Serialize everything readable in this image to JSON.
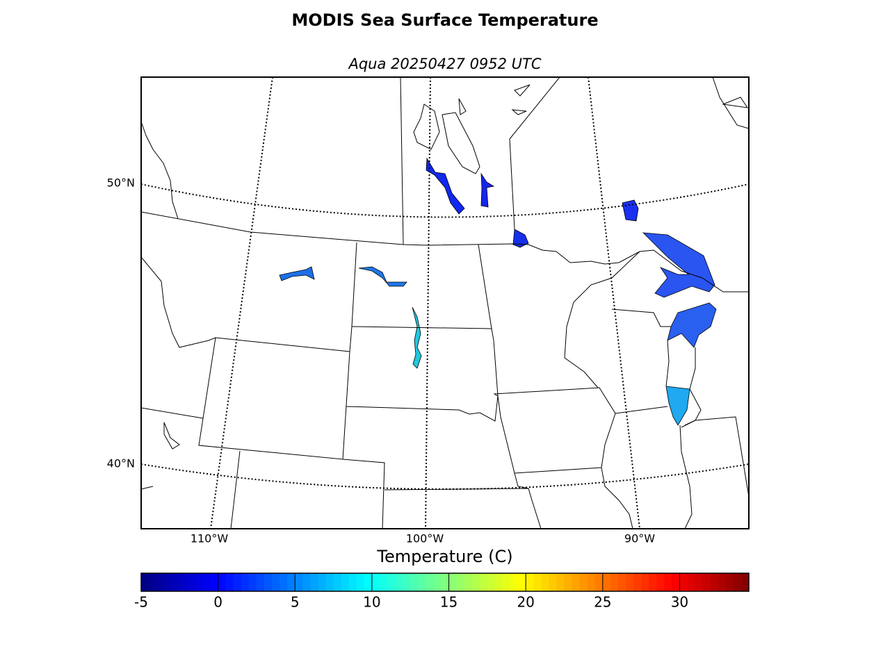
{
  "title": "MODIS Sea Surface Temperature",
  "subtitle": "Aqua 20250427 0952 UTC",
  "lat_labels": [
    "50°N",
    "40°N"
  ],
  "lon_labels": [
    "110°W",
    "100°W",
    "90°W"
  ],
  "colorbar": {
    "label": "Temperature (C)",
    "colormap": "jet",
    "lim": [
      -5,
      34.5
    ],
    "ticks": [
      -5,
      0,
      5,
      10,
      15,
      20,
      25,
      30
    ]
  }
}
